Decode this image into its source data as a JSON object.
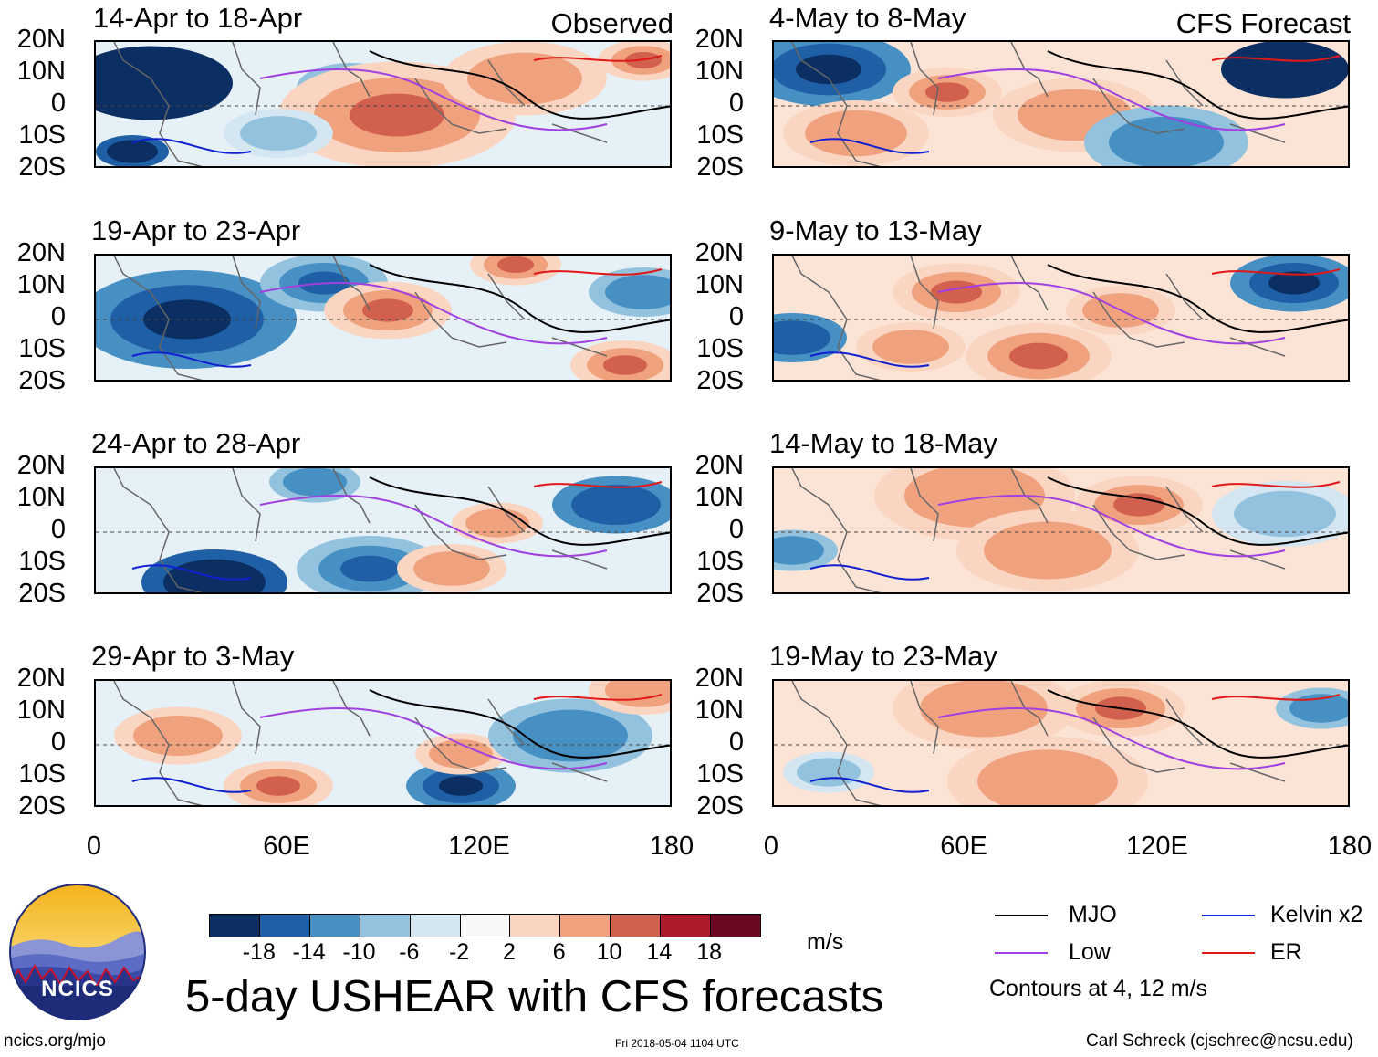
{
  "column_labels": {
    "observed": "Observed",
    "forecast": "CFS Forecast"
  },
  "lat_labels": [
    "20N",
    "10N",
    "0",
    "10S",
    "20S"
  ],
  "lon_labels": [
    "0",
    "60E",
    "120E",
    "180"
  ],
  "panels": {
    "observed": [
      {
        "title": "14-Apr to 18-Apr"
      },
      {
        "title": "19-Apr to 23-Apr"
      },
      {
        "title": "24-Apr to 28-Apr"
      },
      {
        "title": "29-Apr to 3-May"
      }
    ],
    "forecast": [
      {
        "title": "4-May to 8-May"
      },
      {
        "title": "9-May to 13-May"
      },
      {
        "title": "14-May to 18-May"
      },
      {
        "title": "19-May to 23-May"
      }
    ]
  },
  "colorbar": {
    "labels": [
      "-18",
      "-14",
      "-10",
      "-6",
      "-2",
      "2",
      "6",
      "10",
      "14",
      "18"
    ],
    "colors": [
      "#0b2f63",
      "#1f5fa6",
      "#4690c4",
      "#93c2de",
      "#d3e6f1",
      "#f8f8f8",
      "#fad6c2",
      "#f0a27f",
      "#d2604e",
      "#ae1b2c",
      "#6a0a22"
    ],
    "unit": "m/s"
  },
  "legend": {
    "items": [
      {
        "label": "MJO",
        "color": "#000000"
      },
      {
        "label": "Kelvin x2",
        "color": "#1020d0"
      },
      {
        "label": "Low",
        "color": "#a040e0"
      },
      {
        "label": "ER",
        "color": "#e01818"
      }
    ],
    "note": "Contours at 4, 12 m/s"
  },
  "main_title": "5-day USHEAR with CFS forecasts",
  "logo_text": "NCICS",
  "footer": {
    "url": "ncics.org/mjo",
    "timestamp": "Fri 2018-05-04 1104 UTC",
    "author": "Carl Schreck (cjschrec@ncsu.edu)"
  }
}
